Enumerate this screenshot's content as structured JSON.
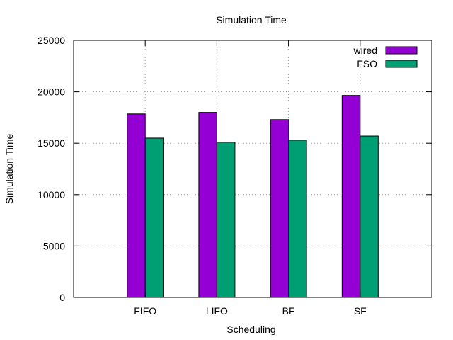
{
  "chart_data": {
    "type": "bar",
    "title": "Simulation Time",
    "xlabel": "Scheduling",
    "ylabel": "Simulation Time",
    "categories": [
      "FIFO",
      "LIFO",
      "BF",
      "SF"
    ],
    "series": [
      {
        "name": "wired",
        "color": "#9400d3",
        "values": [
          17850,
          18000,
          17300,
          19650
        ]
      },
      {
        "name": "FSO",
        "color": "#009e73",
        "values": [
          15500,
          15100,
          15300,
          15700
        ]
      }
    ],
    "ylim": [
      0,
      25000
    ],
    "yticks": [
      0,
      5000,
      10000,
      15000,
      20000,
      25000
    ],
    "grid": true,
    "legend_position": "top-right"
  }
}
